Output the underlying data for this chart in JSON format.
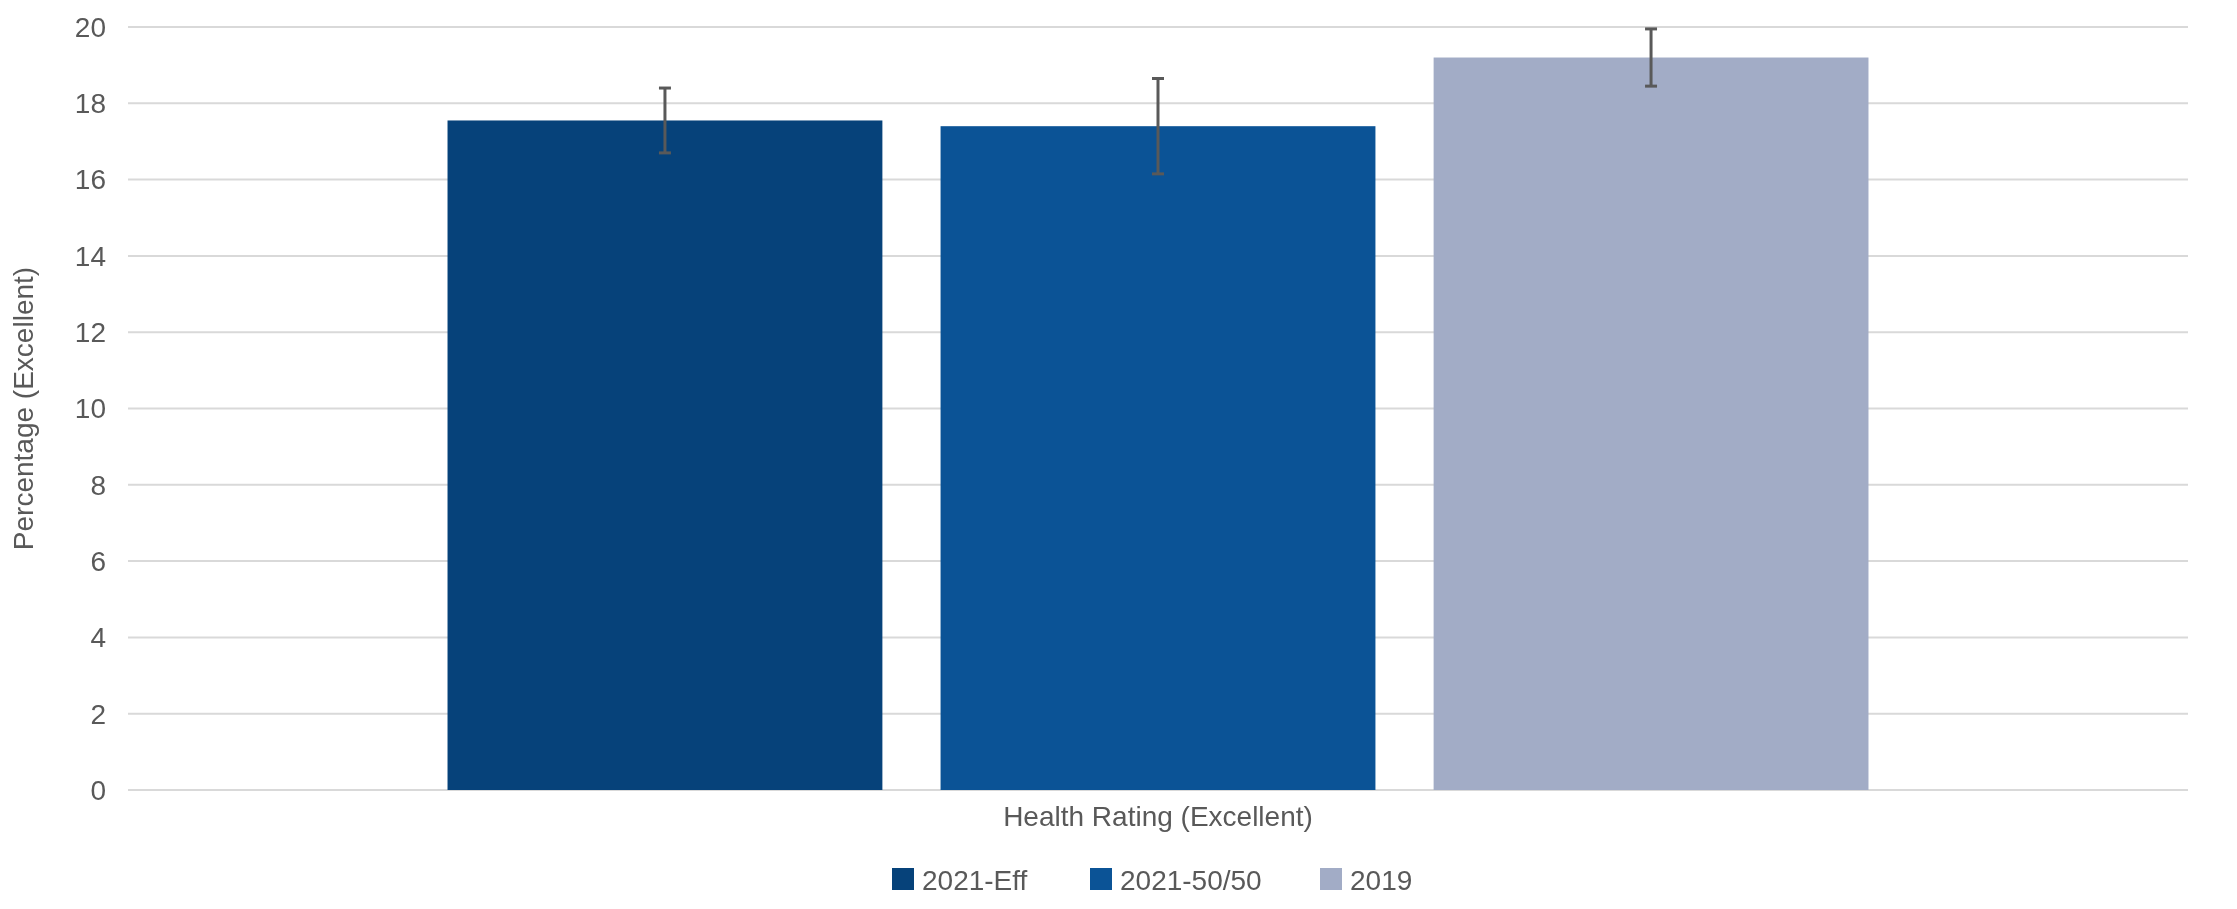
{
  "chart_data": {
    "type": "bar",
    "categories": [
      "Health Rating (Excellent)"
    ],
    "xlabel": null,
    "ylabel": "Percentage (Excellent)",
    "series": [
      {
        "name": "2021-Eff",
        "color": "#06427a",
        "values": [
          17.55
        ],
        "errors": [
          [
            16.7,
            18.4
          ]
        ]
      },
      {
        "name": "2021-50/50",
        "color": "#0b5396",
        "values": [
          17.4
        ],
        "errors": [
          [
            16.15,
            18.65
          ]
        ]
      },
      {
        "name": "2019",
        "color": "#a2acc6",
        "values": [
          19.2
        ],
        "errors": [
          [
            18.45,
            19.95
          ]
        ]
      }
    ],
    "ylim": [
      0,
      20
    ],
    "yticks": [
      0,
      2,
      4,
      6,
      8,
      10,
      12,
      14,
      16,
      18,
      20
    ],
    "grid": "y",
    "legend": "bottom"
  }
}
